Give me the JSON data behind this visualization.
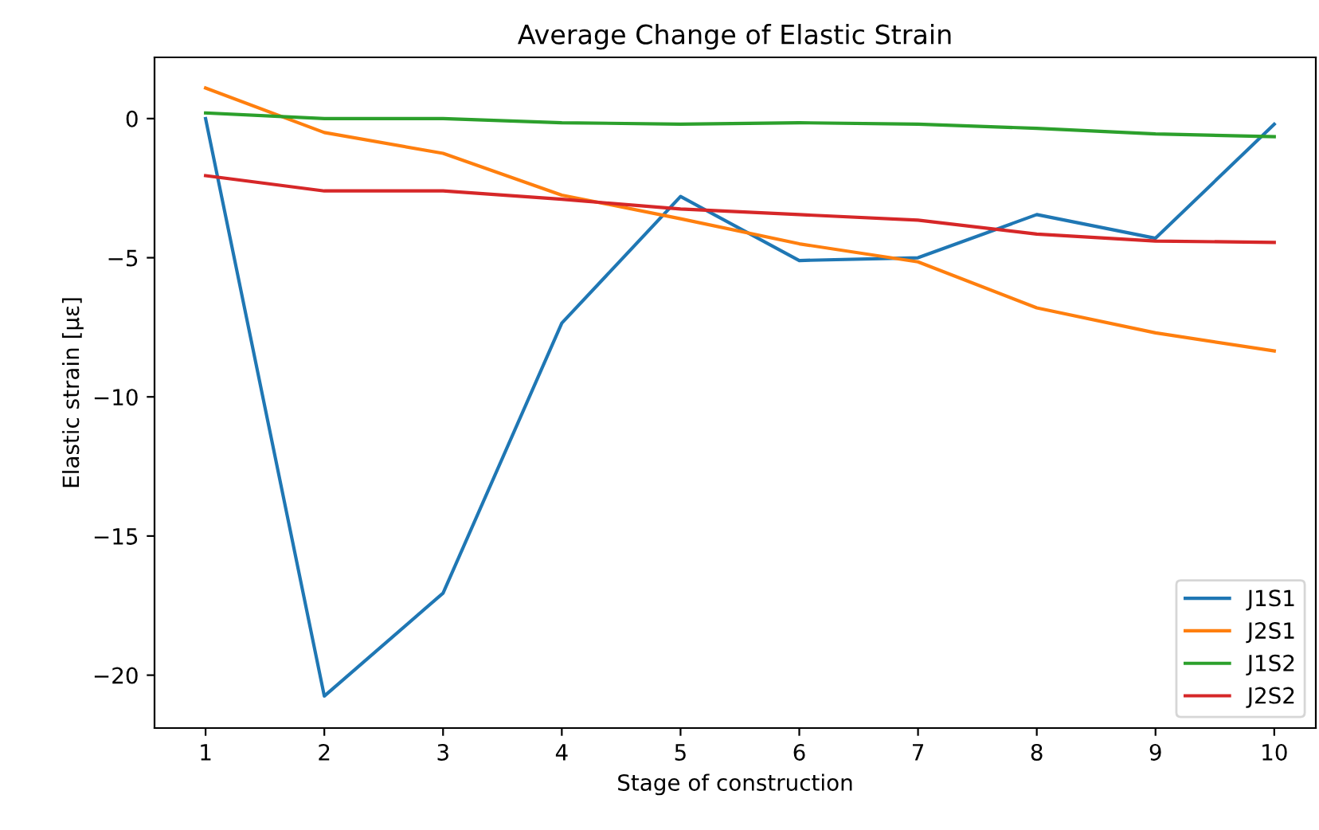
{
  "chart_data": {
    "type": "line",
    "title": "Average Change of Elastic Strain",
    "xlabel": "Stage of construction",
    "ylabel": "Elastic strain [με]",
    "x": [
      1,
      2,
      3,
      4,
      5,
      6,
      7,
      8,
      9,
      10
    ],
    "series": [
      {
        "name": "J1S1",
        "color": "#1f77b4",
        "values": [
          0,
          -20.75,
          -17.05,
          -7.35,
          -2.8,
          -5.1,
          -5.0,
          -3.45,
          -4.3,
          -0.2
        ]
      },
      {
        "name": "J2S1",
        "color": "#ff7f0e",
        "values": [
          1.1,
          -0.5,
          -1.25,
          -2.75,
          -3.6,
          -4.5,
          -5.15,
          -6.8,
          -7.7,
          -8.35
        ]
      },
      {
        "name": "J1S2",
        "color": "#2ca02c",
        "values": [
          0.2,
          0.0,
          0.0,
          -0.15,
          -0.2,
          -0.15,
          -0.2,
          -0.35,
          -0.55,
          -0.65
        ]
      },
      {
        "name": "J2S2",
        "color": "#d62728",
        "values": [
          -2.05,
          -2.6,
          -2.6,
          -2.9,
          -3.25,
          -3.45,
          -3.65,
          -4.15,
          -4.4,
          -4.45
        ]
      }
    ],
    "xlim": [
      0.57,
      10.35
    ],
    "ylim": [
      -21.9,
      2.2
    ],
    "xticks": [
      1,
      2,
      3,
      4,
      5,
      6,
      7,
      8,
      9,
      10
    ],
    "yticks": [
      {
        "value": -20,
        "label": "−20"
      },
      {
        "value": -15,
        "label": "−15"
      },
      {
        "value": -10,
        "label": "−10"
      },
      {
        "value": -5,
        "label": "−5"
      },
      0
    ],
    "grid": false,
    "legend": "bottom right",
    "marker": "none",
    "line_style": "solid"
  }
}
